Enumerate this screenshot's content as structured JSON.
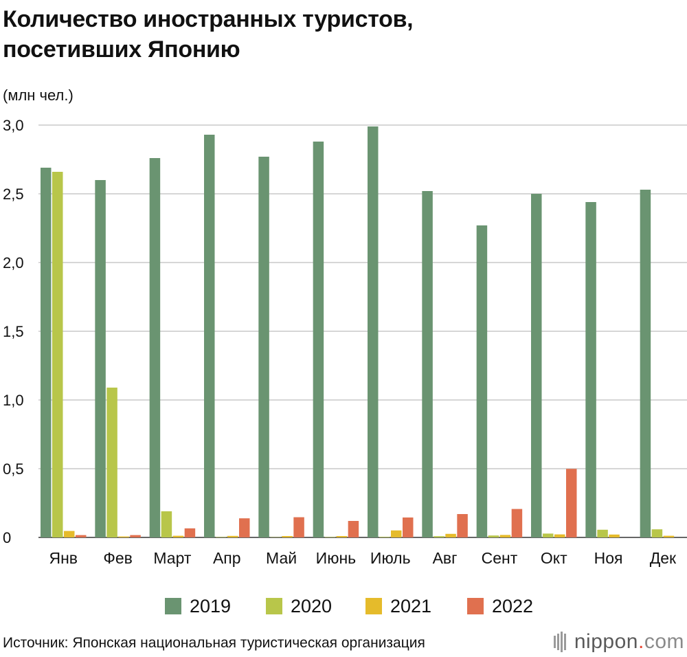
{
  "title_lines": [
    "Количество иностранных туристов,",
    "посетивших Японию"
  ],
  "unit": "(млн чел.)",
  "source": "Источник: Японская национальная туристическая организация",
  "logo": {
    "name": "nippon",
    "dot": ".",
    "suffix": "com"
  },
  "chart_data": {
    "type": "bar",
    "title": "Количество иностранных туристов, посетивших Японию",
    "ylabel": "(млн чел.)",
    "xlabel": "",
    "ylim": [
      0,
      3.0
    ],
    "yticks": [
      0,
      0.5,
      1.0,
      1.5,
      2.0,
      2.5,
      3.0
    ],
    "ytick_labels": [
      "0",
      "0,5",
      "1,0",
      "1,5",
      "2,0",
      "2,5",
      "3,0"
    ],
    "grid": true,
    "legend_position": "bottom",
    "categories": [
      "Янв",
      "Фев",
      "Март",
      "Апр",
      "Май",
      "Июнь",
      "Июль",
      "Авг",
      "Сент",
      "Окт",
      "Ноя",
      "Дек"
    ],
    "series": [
      {
        "name": "2019",
        "color": "#6a9471",
        "values": [
          2.69,
          2.6,
          2.76,
          2.93,
          2.77,
          2.88,
          2.99,
          2.52,
          2.27,
          2.5,
          2.44,
          2.53
        ]
      },
      {
        "name": "2020",
        "color": "#b8c64a",
        "values": [
          2.66,
          1.09,
          0.19,
          0.003,
          0.002,
          0.003,
          0.004,
          0.009,
          0.014,
          0.028,
          0.056,
          0.059
        ]
      },
      {
        "name": "2021",
        "color": "#e5bb2b",
        "values": [
          0.047,
          0.007,
          0.012,
          0.011,
          0.01,
          0.01,
          0.051,
          0.026,
          0.018,
          0.022,
          0.021,
          0.012
        ]
      },
      {
        "name": "2022",
        "color": "#e0704f",
        "values": [
          0.017,
          0.017,
          0.066,
          0.139,
          0.147,
          0.12,
          0.145,
          0.17,
          0.207,
          0.499,
          0,
          0
        ]
      }
    ]
  }
}
